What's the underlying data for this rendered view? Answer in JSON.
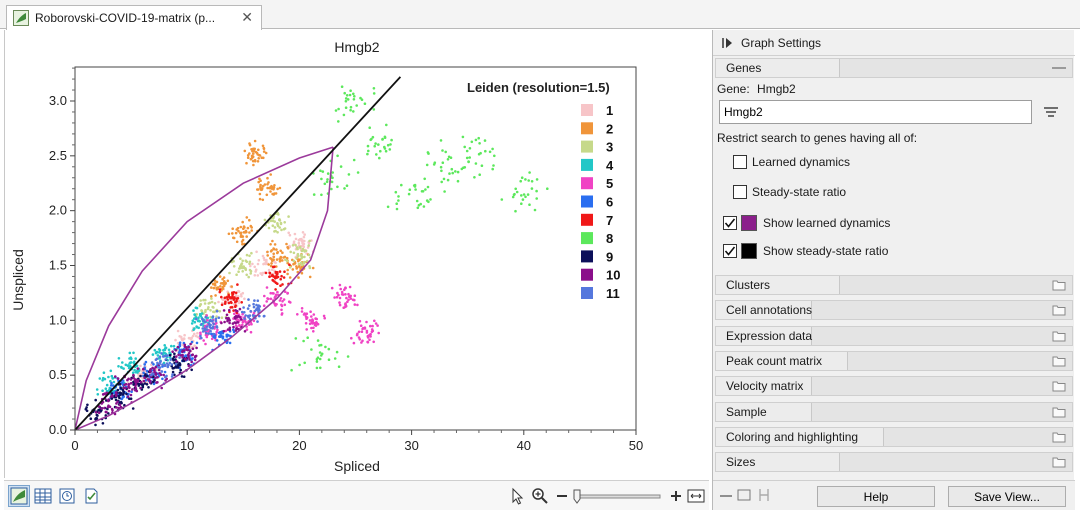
{
  "tab": {
    "title": "Roborovski-COVID-19-matrix (p...",
    "close_glyph": "✕"
  },
  "plot": {
    "title": "Hmgb2",
    "legend_title": "Leiden (resolution=1.5)",
    "legend": [
      {
        "label": "1",
        "color": "#f7c5c8"
      },
      {
        "label": "2",
        "color": "#f0953a"
      },
      {
        "label": "3",
        "color": "#c6d98a"
      },
      {
        "label": "4",
        "color": "#22c7c7"
      },
      {
        "label": "5",
        "color": "#f043c4"
      },
      {
        "label": "6",
        "color": "#2a6ef0"
      },
      {
        "label": "7",
        "color": "#f01818"
      },
      {
        "label": "8",
        "color": "#5ce85c"
      },
      {
        "label": "9",
        "color": "#0c0f5a"
      },
      {
        "label": "10",
        "color": "#8a0f8a"
      },
      {
        "label": "11",
        "color": "#5577dd"
      }
    ],
    "curve_colors": {
      "dynamics": "#9b3a9b",
      "steady": "#111111"
    }
  },
  "chart_data": {
    "type": "scatter",
    "title": "Hmgb2",
    "xlabel": "Spliced",
    "ylabel": "Unspliced",
    "xlim": [
      0,
      50
    ],
    "ylim": [
      0,
      3.4
    ],
    "xticks": [
      "0",
      "10",
      "20",
      "30",
      "40",
      "50"
    ],
    "yticks": [
      "0.0",
      "0.5",
      "1.0",
      "1.5",
      "2.0",
      "2.5",
      "3.0"
    ],
    "legend_title": "Leiden (resolution=1.5)",
    "legend_position": "top-right",
    "steady_state_line": [
      [
        0,
        0
      ],
      [
        29,
        3.22
      ]
    ],
    "learned_dynamics_upper": [
      [
        0,
        0
      ],
      [
        1,
        0.45
      ],
      [
        3,
        0.95
      ],
      [
        6,
        1.45
      ],
      [
        10,
        1.9
      ],
      [
        15,
        2.25
      ],
      [
        20,
        2.48
      ],
      [
        23,
        2.58
      ]
    ],
    "learned_dynamics_lower": [
      [
        23,
        2.58
      ],
      [
        22.5,
        2.0
      ],
      [
        21,
        1.55
      ],
      [
        18,
        1.2
      ],
      [
        14,
        0.85
      ],
      [
        10,
        0.55
      ],
      [
        6,
        0.3
      ],
      [
        3,
        0.13
      ],
      [
        0,
        0
      ]
    ],
    "series": [
      {
        "name": "1",
        "values": [
          [
            6,
            0.5
          ],
          [
            10,
            0.8
          ],
          [
            14,
            1.2
          ],
          [
            17,
            1.5
          ],
          [
            20,
            1.7
          ]
        ]
      },
      {
        "name": "2",
        "values": [
          [
            13,
            1.3
          ],
          [
            15,
            1.8
          ],
          [
            17,
            2.2
          ],
          [
            18,
            1.6
          ],
          [
            20,
            1.5
          ],
          [
            16,
            2.5
          ]
        ]
      },
      {
        "name": "3",
        "values": [
          [
            12,
            1.1
          ],
          [
            15,
            1.5
          ],
          [
            18,
            1.9
          ],
          [
            20,
            1.6
          ]
        ]
      },
      {
        "name": "4",
        "values": [
          [
            3,
            0.4
          ],
          [
            5,
            0.6
          ],
          [
            8,
            0.7
          ],
          [
            11,
            1.0
          ]
        ]
      },
      {
        "name": "5",
        "values": [
          [
            12,
            0.9
          ],
          [
            15,
            1.0
          ],
          [
            18,
            1.2
          ],
          [
            21,
            1.0
          ],
          [
            24,
            1.2
          ],
          [
            26,
            0.9
          ]
        ]
      },
      {
        "name": "6",
        "values": [
          [
            4,
            0.35
          ],
          [
            7,
            0.5
          ],
          [
            10,
            0.7
          ],
          [
            13,
            0.85
          ]
        ]
      },
      {
        "name": "7",
        "values": [
          [
            14,
            1.2
          ],
          [
            18,
            1.4
          ]
        ]
      },
      {
        "name": "8",
        "values": [
          [
            23,
            2.3
          ],
          [
            27,
            2.6
          ],
          [
            30,
            2.1
          ],
          [
            33,
            2.4
          ],
          [
            36,
            2.5
          ],
          [
            40,
            2.2
          ],
          [
            25,
            3.0
          ],
          [
            22,
            0.7
          ]
        ]
      },
      {
        "name": "9",
        "values": [
          [
            2,
            0.15
          ],
          [
            4,
            0.3
          ],
          [
            6,
            0.45
          ],
          [
            9,
            0.6
          ]
        ]
      },
      {
        "name": "10",
        "values": [
          [
            3,
            0.25
          ],
          [
            5,
            0.4
          ],
          [
            7,
            0.5
          ],
          [
            10,
            0.7
          ],
          [
            14,
            1.0
          ]
        ]
      },
      {
        "name": "11",
        "values": [
          [
            8,
            0.6
          ],
          [
            12,
            0.95
          ],
          [
            16,
            1.1
          ]
        ]
      }
    ]
  },
  "panel": {
    "header": "Graph Settings",
    "genes_section": "Genes",
    "gene_label": "Gene:",
    "gene_name": "Hmgb2",
    "gene_input_value": "Hmgb2",
    "restrict_label": "Restrict search to genes having all of:",
    "learned_dynamics_label": "Learned dynamics",
    "steady_state_ratio_label": "Steady-state ratio",
    "show_learned_label": "Show learned dynamics",
    "show_steady_label": "Show steady-state ratio",
    "show_learned_color": "#8b1f8b",
    "show_steady_color": "#000000",
    "sections": [
      "Clusters",
      "Cell annotations",
      "Expression data",
      "Peak count matrix",
      "Velocity matrix",
      "Sample",
      "Coloring and highlighting",
      "Sizes"
    ],
    "help_button": "Help",
    "save_view_button": "Save View..."
  }
}
